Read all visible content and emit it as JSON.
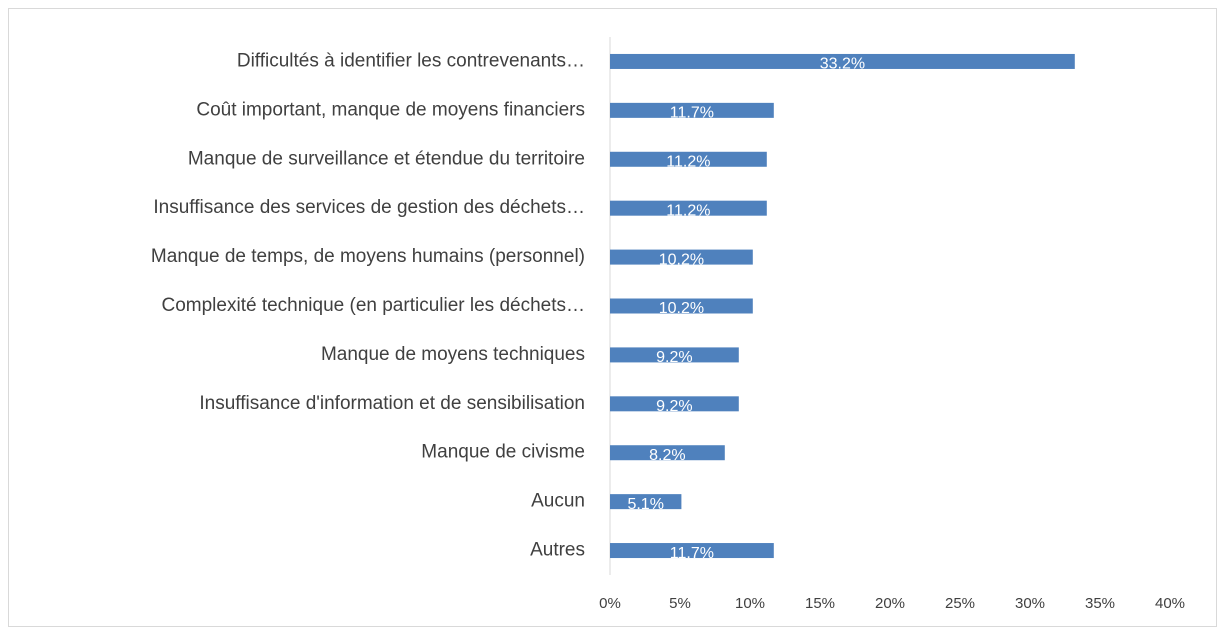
{
  "chart_data": {
    "type": "bar",
    "orientation": "horizontal",
    "categories": [
      "Difficultés  à identifier les contrevenants…",
      "Coût important, manque de moyens financiers",
      "Manque de surveillance et étendue du territoire",
      "Insuffisance des services de gestion des déchets…",
      "Manque de temps, de moyens humains (personnel)",
      "Complexité technique (en particulier les déchets…",
      "Manque de moyens techniques",
      "Insuffisance d'information et de sensibilisation",
      "Manque de civisme",
      "Aucun",
      "Autres"
    ],
    "values": [
      33.2,
      11.7,
      11.2,
      11.2,
      10.2,
      10.2,
      9.2,
      9.2,
      8.2,
      5.1,
      11.7
    ],
    "value_labels": [
      "33.2%",
      "11.7%",
      "11.2%",
      "11.2%",
      "10.2%",
      "10.2%",
      "9.2%",
      "9.2%",
      "8.2%",
      "5.1%",
      "11.7%"
    ],
    "color": "#4f81bd",
    "xlim": [
      0,
      40
    ],
    "xticks": [
      {
        "value": 0,
        "label": "0%"
      },
      {
        "value": 5,
        "label": "5%"
      },
      {
        "value": 10,
        "label": "10%"
      },
      {
        "value": 15,
        "label": "15%"
      },
      {
        "value": 20,
        "label": "20%"
      },
      {
        "value": 25,
        "label": "25%"
      },
      {
        "value": 30,
        "label": "30%"
      },
      {
        "value": 35,
        "label": "35%"
      },
      {
        "value": 40,
        "label": "40%"
      }
    ],
    "grid": false
  }
}
